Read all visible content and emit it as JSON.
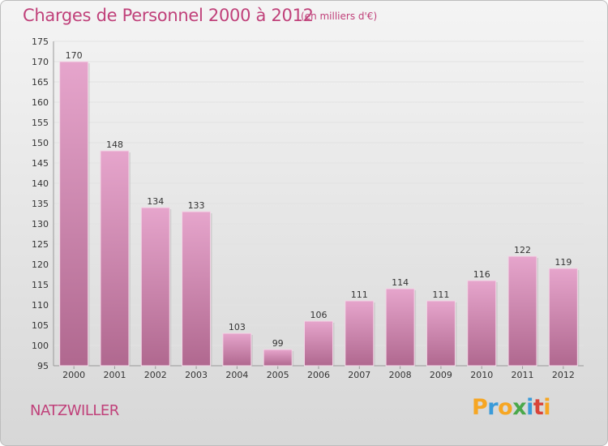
{
  "header": {
    "title": "Charges de Personnel 2000 à 2012",
    "subtitle": "(en milliers d'€)"
  },
  "footer": {
    "commune": "NATZWILLER",
    "logo": [
      {
        "text": "P",
        "color": "#f6a623"
      },
      {
        "text": "r",
        "color": "#3a9bd9"
      },
      {
        "text": "o",
        "color": "#f6a623"
      },
      {
        "text": "x",
        "color": "#4aa84a"
      },
      {
        "text": "i",
        "color": "#3a9bd9"
      },
      {
        "text": "t",
        "color": "#d9443a"
      },
      {
        "text": "i",
        "color": "#f6a623"
      }
    ]
  },
  "chart_data": {
    "type": "bar",
    "title": "Charges de Personnel 2000 à 2012",
    "subtitle": "(en milliers d'€)",
    "categories": [
      "2000",
      "2001",
      "2002",
      "2003",
      "2004",
      "2005",
      "2006",
      "2007",
      "2008",
      "2009",
      "2010",
      "2011",
      "2012"
    ],
    "values": [
      170,
      148,
      134,
      133,
      103,
      99,
      106,
      111,
      114,
      111,
      116,
      122,
      119
    ],
    "ylim": [
      95,
      175
    ],
    "yticks": [
      95,
      100,
      105,
      110,
      115,
      120,
      125,
      130,
      135,
      140,
      145,
      150,
      155,
      160,
      165,
      170,
      175
    ],
    "grid": true,
    "bar_color": "#c9679b",
    "data_labels": true
  }
}
